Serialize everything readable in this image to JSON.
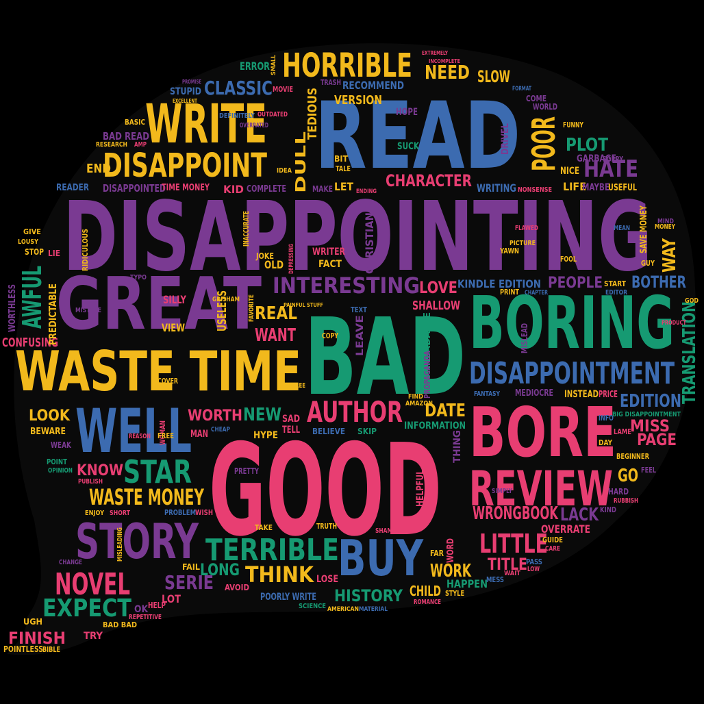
{
  "colors": {
    "background": "#000000",
    "purple": "#7a3a92",
    "blue": "#3c6bb0",
    "green": "#169a72",
    "yellow": "#f2b91c",
    "pink": "#e83e72"
  },
  "shape": "speech-bubble",
  "words": {
    "disappointing": "DISAPPOINTING",
    "good": "GOOD",
    "read": "READ",
    "bad": "BAD",
    "boring": "BORING",
    "great": "GREAT",
    "waste_time": "WASTE TIME",
    "write": "WRITE",
    "bore": "BORE",
    "review": "REVIEW",
    "well": "WELL",
    "disappoint": "DISAPPOINT",
    "horrible": "HORRIBLE",
    "story": "STORY",
    "buy": "BUY",
    "disappointment": "DISAPPOINTMENT",
    "terrible": "TERRIBLE",
    "author": "AUTHOR",
    "interesting": "INTERESTING",
    "waste_money": "WASTE MONEY",
    "star": "STAR",
    "classic": "CLASSIC",
    "poor": "POOR",
    "plot": "PLOT",
    "hate": "HATE",
    "character": "CHARACTER",
    "novel": "NOVEL",
    "expect": "EXPECT",
    "think": "THINK",
    "work": "WORK",
    "history": "HISTORY",
    "wrongbook": "WRONGBOOK",
    "lack": "LACK",
    "little": "LITTLE",
    "title": "TITLE",
    "edition": "EDITION",
    "page": "PAGE",
    "miss": "MISS",
    "go": "GO",
    "need": "NEED",
    "slow": "SLOW",
    "awful": "AWFUL",
    "confusing": "CONFUSING",
    "finish": "FINISH",
    "look": "LOOK",
    "know": "KNOW",
    "serie": "SERIE",
    "long": "LONG",
    "worth": "WORTH",
    "new": "NEW",
    "date": "DATE",
    "real": "REAL",
    "want": "WANT",
    "love": "LOVE",
    "shallow": "SHALLOW",
    "people": "PEOPLE",
    "bother": "BOTHER",
    "way": "WAY",
    "translation": "TRANSLATION",
    "kindle_edition": "KINDLE EDITION",
    "information": "INFORMATION",
    "overrate": "OVERRATE",
    "child": "CHILD",
    "happen": "HAPPEN",
    "version": "VERSION",
    "recommend": "RECOMMEND",
    "error": "ERROR",
    "life": "LIFE",
    "maybe": "MAYBE",
    "garbage": "GARBAGE",
    "writing": "WRITING",
    "tedious": "TEDIOUS",
    "dull": "DULL",
    "disappointed": "DISAPPOINTED",
    "time_money": "TIME MONEY",
    "reader": "READER",
    "kid": "KID",
    "complete": "COMPLETE",
    "end": "END",
    "bad_read": "BAD READ",
    "stupid": "STUPID",
    "view": "VIEW",
    "silly": "SILLY",
    "mistake": "MISTAKE",
    "useless": "USELESS",
    "beware": "BEWARE",
    "fact": "FACT",
    "writer": "WRITER",
    "old": "OLD",
    "let": "LET",
    "make": "MAKE",
    "unreadable": "UNREADABLE",
    "leave": "LEAVE",
    "christian": "CHRISTIAN",
    "predictable": "PREDICTABLE",
    "wasteful": "WORTHLESS",
    "pointless": "POINTLESS",
    "bible": "BIBLE",
    "bad_bad": "BAD BAD",
    "try": "TRY",
    "ugh": "UGH",
    "ok": "OK",
    "fail": "FAIL",
    "lot": "LOT",
    "lose": "LOSE",
    "avoid": "AVOID",
    "poorly_write": "POORLY WRITE",
    "science": "SCIENCE",
    "american": "AMERICAN",
    "material": "MATERIAL",
    "style": "STYLE",
    "romance": "ROMANCE",
    "helpful": "HELPFUL",
    "thing": "THING",
    "sad": "SAD",
    "tell": "TELL",
    "hype": "HYPE",
    "believe": "BELIEVE",
    "skip": "SKIP",
    "find": "FIND",
    "amazon": "AMAZON",
    "fantasy": "FANTASY",
    "mediocre": "MEDIOCRE",
    "instead": "INSTEAD",
    "price": "PRICE",
    "big_disappointment": "BIG DISAPPOINTMENT",
    "beginner": "BEGINNER",
    "hard": "HARD",
    "kind": "KIND",
    "guide": "GUIDE",
    "problem": "PROBLEM",
    "wish": "WISH",
    "enjoy": "ENJOY",
    "short": "SHORT",
    "funny": "FUNNY",
    "sorry": "SORRY",
    "nice": "NICE",
    "save_money": "SAVE MONEY",
    "guy": "GUY",
    "start": "START",
    "editor": "EDITOR",
    "joke": "JOKE",
    "idea": "IDEA",
    "hope": "HOPE",
    "suck": "SUCK",
    "bit": "BIT",
    "tale": "TALE",
    "movie": "MOVIE",
    "trash": "TRASH",
    "research": "RESEARCH",
    "basic": "BASIC",
    "lie": "LIE",
    "stop": "STOP",
    "give": "GIVE",
    "lousy": "LOUSY",
    "ridiculous": "RIDICULOUS",
    "drivel": "DRIVEL",
    "world": "WORLD",
    "come": "COME",
    "typo": "TYPO",
    "cover": "COVER",
    "money": "MONEY",
    "pretty": "PRETTY",
    "truth": "TRUTH",
    "shame": "SHAME",
    "far": "FAR",
    "word": "WORD",
    "take": "TAKE",
    "point": "POINT",
    "opinion": "OPINION",
    "weak": "WEAK",
    "cheap": "CHEAP",
    "man": "MAN",
    "woman": "WOMAN",
    "reason": "REASON",
    "free": "FREE",
    "agree": "AGREE",
    "text": "TEXT",
    "copy": "COPY",
    "propaganda": "PROPAGANDA",
    "print": "PRINT",
    "yawn": "YAWN",
    "fool": "FOOL",
    "lame": "LAME",
    "day": "DAY",
    "info": "INFO",
    "feel": "FEEL",
    "rubbish": "RUBBISH",
    "simply": "SIMPLY",
    "care": "CARE",
    "change": "CHANGE",
    "misleading": "MISLEADING",
    "repetitive": "REPETITIVE",
    "help": "HELP",
    "wait": "WAIT",
    "mess": "MESS",
    "pass": "PASS",
    "low": "LOW",
    "outdated": "OUTDATED",
    "definitely": "DEFINITELY",
    "overrated": "OVERRATED",
    "amp": "AMP",
    "useful": "USEFUL",
    "nonsense": "NONSENSE",
    "publish": "PUBLISH",
    "painful": "PAINFUL STUFF",
    "favorite": "FAVORITE",
    "grisham": "GRISHAM",
    "inaccurate": "INACCURATE",
    "depressing": "DEPRESSING",
    "small": "SMALL",
    "mean": "MEAN",
    "mind": "MIND",
    "flawed": "FLAWED",
    "picture": "PICTURE",
    "chapter": "CHAPTER",
    "misread": "MISLEAD",
    "product": "PRODUCT",
    "god": "GOD",
    "ending": "ENDING",
    "excellent": "EXCELLENT",
    "promise": "PROMISE",
    "incomplete": "INCOMPLETE",
    "extremely": "EXTREMELY",
    "format": "FORMAT"
  }
}
